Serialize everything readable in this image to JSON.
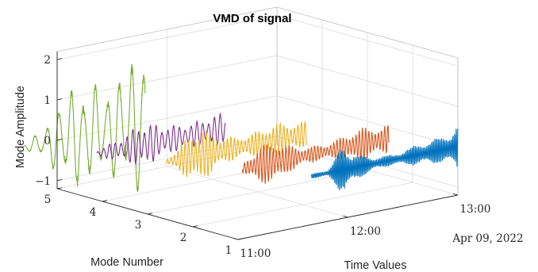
{
  "chart_data": {
    "type": "line",
    "view": "3d",
    "title": "VMD of signal",
    "xlabel": "Time Values",
    "ylabel": "Mode Number",
    "zlabel": "Mode Amplitude",
    "date_label": "Apr 09, 2022",
    "x_ticks": [
      "11:00",
      "12:00",
      "13:00"
    ],
    "y_ticks": [
      "1",
      "2",
      "3",
      "4",
      "5"
    ],
    "z_ticks": [
      "−1",
      "0",
      "1",
      "2"
    ],
    "x_range": [
      "11:00",
      "13:00"
    ],
    "y_range": [
      1,
      5
    ],
    "z_range": [
      -1.2,
      2.2
    ],
    "grid": true,
    "series": [
      {
        "mode": 1,
        "color": "#0072BD",
        "start": "11:40",
        "end": "13:00",
        "amplitude_envelope": [
          0.05,
          0.08,
          0.6,
          0.25,
          0.15,
          0.12,
          0.2,
          0.28,
          0.3,
          0.55
        ]
      },
      {
        "mode": 2,
        "color": "#D95319",
        "start": "11:27",
        "end": "12:47",
        "amplitude_envelope": [
          0.1,
          0.45,
          0.5,
          0.3,
          0.2,
          0.18,
          0.25,
          0.4,
          0.35,
          0.35
        ]
      },
      {
        "mode": 3,
        "color": "#EDB120",
        "start": "11:10",
        "end": "12:27",
        "amplitude_envelope": [
          0.05,
          0.35,
          0.7,
          0.45,
          0.3,
          0.25,
          0.3,
          0.4,
          0.35,
          0.3
        ]
      },
      {
        "mode": 4,
        "color": "#7E2F8E",
        "start": "10:57",
        "end": "12:07",
        "amplitude_envelope": [
          0.1,
          0.2,
          0.3,
          0.55,
          0.45,
          0.35,
          0.3,
          0.3,
          0.35,
          0.4
        ]
      },
      {
        "mode": 5,
        "color": "#77AC30",
        "start": "10:42",
        "end": "11:48",
        "amplitude_envelope": [
          0.1,
          0.25,
          0.6,
          1.1,
          1.3,
          1.2,
          1.0,
          1.3,
          1.6,
          2.0
        ]
      }
    ]
  }
}
